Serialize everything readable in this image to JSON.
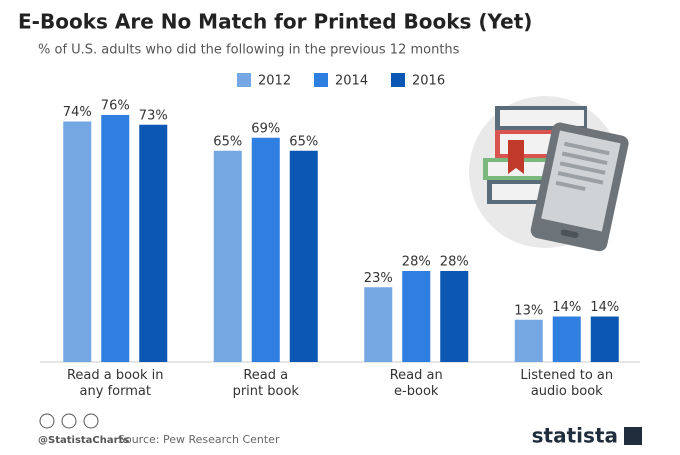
{
  "chart_data": {
    "type": "bar",
    "title": "E-Books Are No Match for Printed Books (Yet)",
    "subtitle": "% of U.S. adults who did the following in the previous 12 months",
    "categories": [
      "Read a book in\nany format",
      "Read a\nprint book",
      "Read an\ne-book",
      "Listened to an\naudio book"
    ],
    "series": [
      {
        "name": "2012",
        "color": "#75a7e3",
        "values": [
          74,
          65,
          23,
          13
        ],
        "value_labels": [
          "74%",
          "65%",
          "23%",
          "13%"
        ]
      },
      {
        "name": "2014",
        "color": "#2f7fe0",
        "values": [
          76,
          69,
          28,
          14
        ],
        "value_labels": [
          "76%",
          "69%",
          "28%",
          "14%"
        ]
      },
      {
        "name": "2016",
        "color": "#0b57b3",
        "values": [
          73,
          65,
          28,
          14
        ],
        "value_labels": [
          "73%",
          "65%",
          "28%",
          "14%"
        ]
      }
    ],
    "ylim": [
      0,
      100
    ],
    "legend": "top",
    "credit": "@StatistaCharts",
    "source": "Source: Pew Research Center",
    "brand": "statista"
  }
}
